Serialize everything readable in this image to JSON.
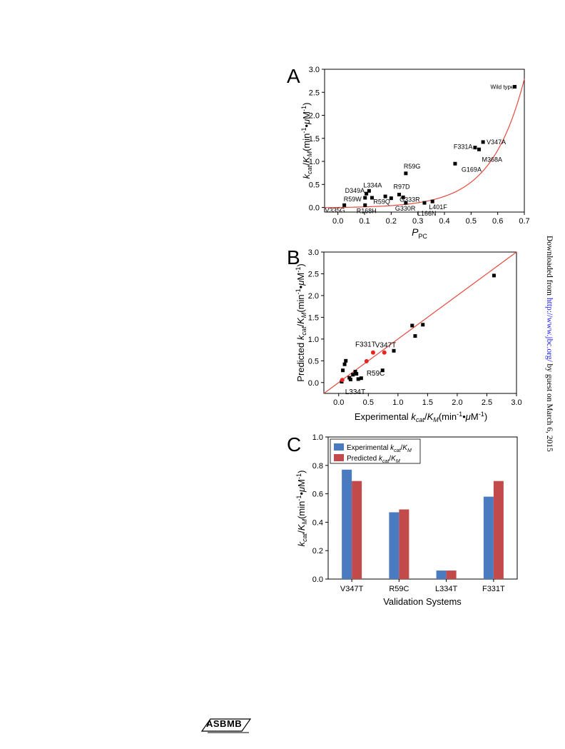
{
  "side_note": {
    "prefix": "Downloaded from",
    "link": "http://www.jbc.org/",
    "suffix": "by guest on March 6, 2015"
  },
  "logo": {
    "text": "ASBMB"
  },
  "colors": {
    "fit_line": "#e8493f",
    "validation_point": "#e8241f",
    "experimental_bar": "#4a7bc0",
    "predicted_bar": "#c34a4a",
    "marker": "#000000"
  },
  "chart_data": [
    {
      "panel": "A",
      "type": "scatter",
      "xlabel_main": "P",
      "xlabel_sub": "PC",
      "ylabel": "kcat/KM(min-1•μM-1)",
      "xlim": [
        -0.05,
        0.7
      ],
      "ylim": [
        -0.1,
        3.0
      ],
      "xticks": [
        "0.0",
        "0.1",
        "0.2",
        "0.3",
        "0.4",
        "0.5",
        "0.6",
        "0.7"
      ],
      "yticks": [
        "0.0",
        "0.5",
        "1.0",
        "1.5",
        "2.0",
        "2.5",
        "3.0"
      ],
      "fit": {
        "type": "exponential",
        "a": 0.01,
        "b": 8.05,
        "c": -0.01
      },
      "points": [
        {
          "x": 0.664,
          "y": 2.62,
          "label": "Wild type"
        },
        {
          "x": 0.545,
          "y": 1.42,
          "label": "V347A"
        },
        {
          "x": 0.515,
          "y": 1.3,
          "label": "F331A"
        },
        {
          "x": 0.53,
          "y": 1.26,
          "label": "M368A"
        },
        {
          "x": 0.44,
          "y": 0.95,
          "label": "G169A"
        },
        {
          "x": 0.255,
          "y": 0.74,
          "label": "R59G"
        },
        {
          "x": 0.117,
          "y": 0.36,
          "label": "L334A"
        },
        {
          "x": 0.107,
          "y": 0.3,
          "label": "D349A"
        },
        {
          "x": 0.102,
          "y": 0.21,
          "label": "R59W"
        },
        {
          "x": 0.128,
          "y": 0.21,
          "label": ""
        },
        {
          "x": 0.23,
          "y": 0.28,
          "label": "R97D"
        },
        {
          "x": 0.178,
          "y": 0.24,
          "label": ""
        },
        {
          "x": 0.245,
          "y": 0.22,
          "label": "G333R"
        },
        {
          "x": 0.2,
          "y": 0.2,
          "label": "R59Q"
        },
        {
          "x": 0.255,
          "y": 0.1,
          "label": "G330R"
        },
        {
          "x": 0.325,
          "y": 0.1,
          "label": "L166N"
        },
        {
          "x": 0.355,
          "y": 0.13,
          "label": "L401F"
        },
        {
          "x": 0.024,
          "y": 0.05,
          "label": "V335G"
        },
        {
          "x": 0.102,
          "y": 0.05,
          "label": "R168H"
        }
      ]
    },
    {
      "panel": "B",
      "type": "scatter",
      "xlabel": "Experimental kcat/KM(min-1•μM-1)",
      "ylabel": "Predicted kcat/KM(min-1•μM-1)",
      "xlim": [
        -0.25,
        3.0
      ],
      "ylim": [
        -0.25,
        3.0
      ],
      "xticks": [
        "0.0",
        "0.5",
        "1.0",
        "1.5",
        "2.0",
        "2.5",
        "3.0"
      ],
      "yticks": [
        "0.0",
        "0.5",
        "1.0",
        "1.5",
        "2.0",
        "2.5",
        "3.0"
      ],
      "diagonal": true,
      "training_points": [
        {
          "x": 2.62,
          "y": 2.46
        },
        {
          "x": 1.42,
          "y": 1.33
        },
        {
          "x": 1.24,
          "y": 1.31
        },
        {
          "x": 1.29,
          "y": 1.07
        },
        {
          "x": 0.93,
          "y": 0.73
        },
        {
          "x": 0.74,
          "y": 0.28
        },
        {
          "x": 0.05,
          "y": 0.02
        },
        {
          "x": 0.07,
          "y": 0.28
        },
        {
          "x": 0.1,
          "y": 0.42
        },
        {
          "x": 0.12,
          "y": 0.5
        },
        {
          "x": 0.18,
          "y": 0.11
        },
        {
          "x": 0.2,
          "y": 0.07
        },
        {
          "x": 0.24,
          "y": 0.18
        },
        {
          "x": 0.28,
          "y": 0.25
        },
        {
          "x": 0.3,
          "y": 0.2
        },
        {
          "x": 0.33,
          "y": 0.08
        },
        {
          "x": 0.38,
          "y": 0.1
        }
      ],
      "validation_points": [
        {
          "x": 0.77,
          "y": 0.69,
          "label": "V347T"
        },
        {
          "x": 0.58,
          "y": 0.69,
          "label": "F331T"
        },
        {
          "x": 0.47,
          "y": 0.49,
          "label": "R59C"
        },
        {
          "x": 0.06,
          "y": 0.06,
          "label": "L334T"
        }
      ]
    },
    {
      "panel": "C",
      "type": "bar",
      "xlabel": "Validation Systems",
      "ylabel": "kcat/KM(min-1•μM-1)",
      "ylim": [
        0.0,
        1.0
      ],
      "yticks": [
        "0.0",
        "0.2",
        "0.4",
        "0.6",
        "0.8",
        "1.0"
      ],
      "categories": [
        "V347T",
        "R59C",
        "L334T",
        "F331T"
      ],
      "series": [
        {
          "name": "Experimental kcat/KM",
          "values": [
            0.77,
            0.47,
            0.06,
            0.58
          ]
        },
        {
          "name": "Predicted kcat/KM",
          "values": [
            0.69,
            0.49,
            0.06,
            0.69
          ]
        }
      ],
      "legend": "top-left"
    }
  ]
}
